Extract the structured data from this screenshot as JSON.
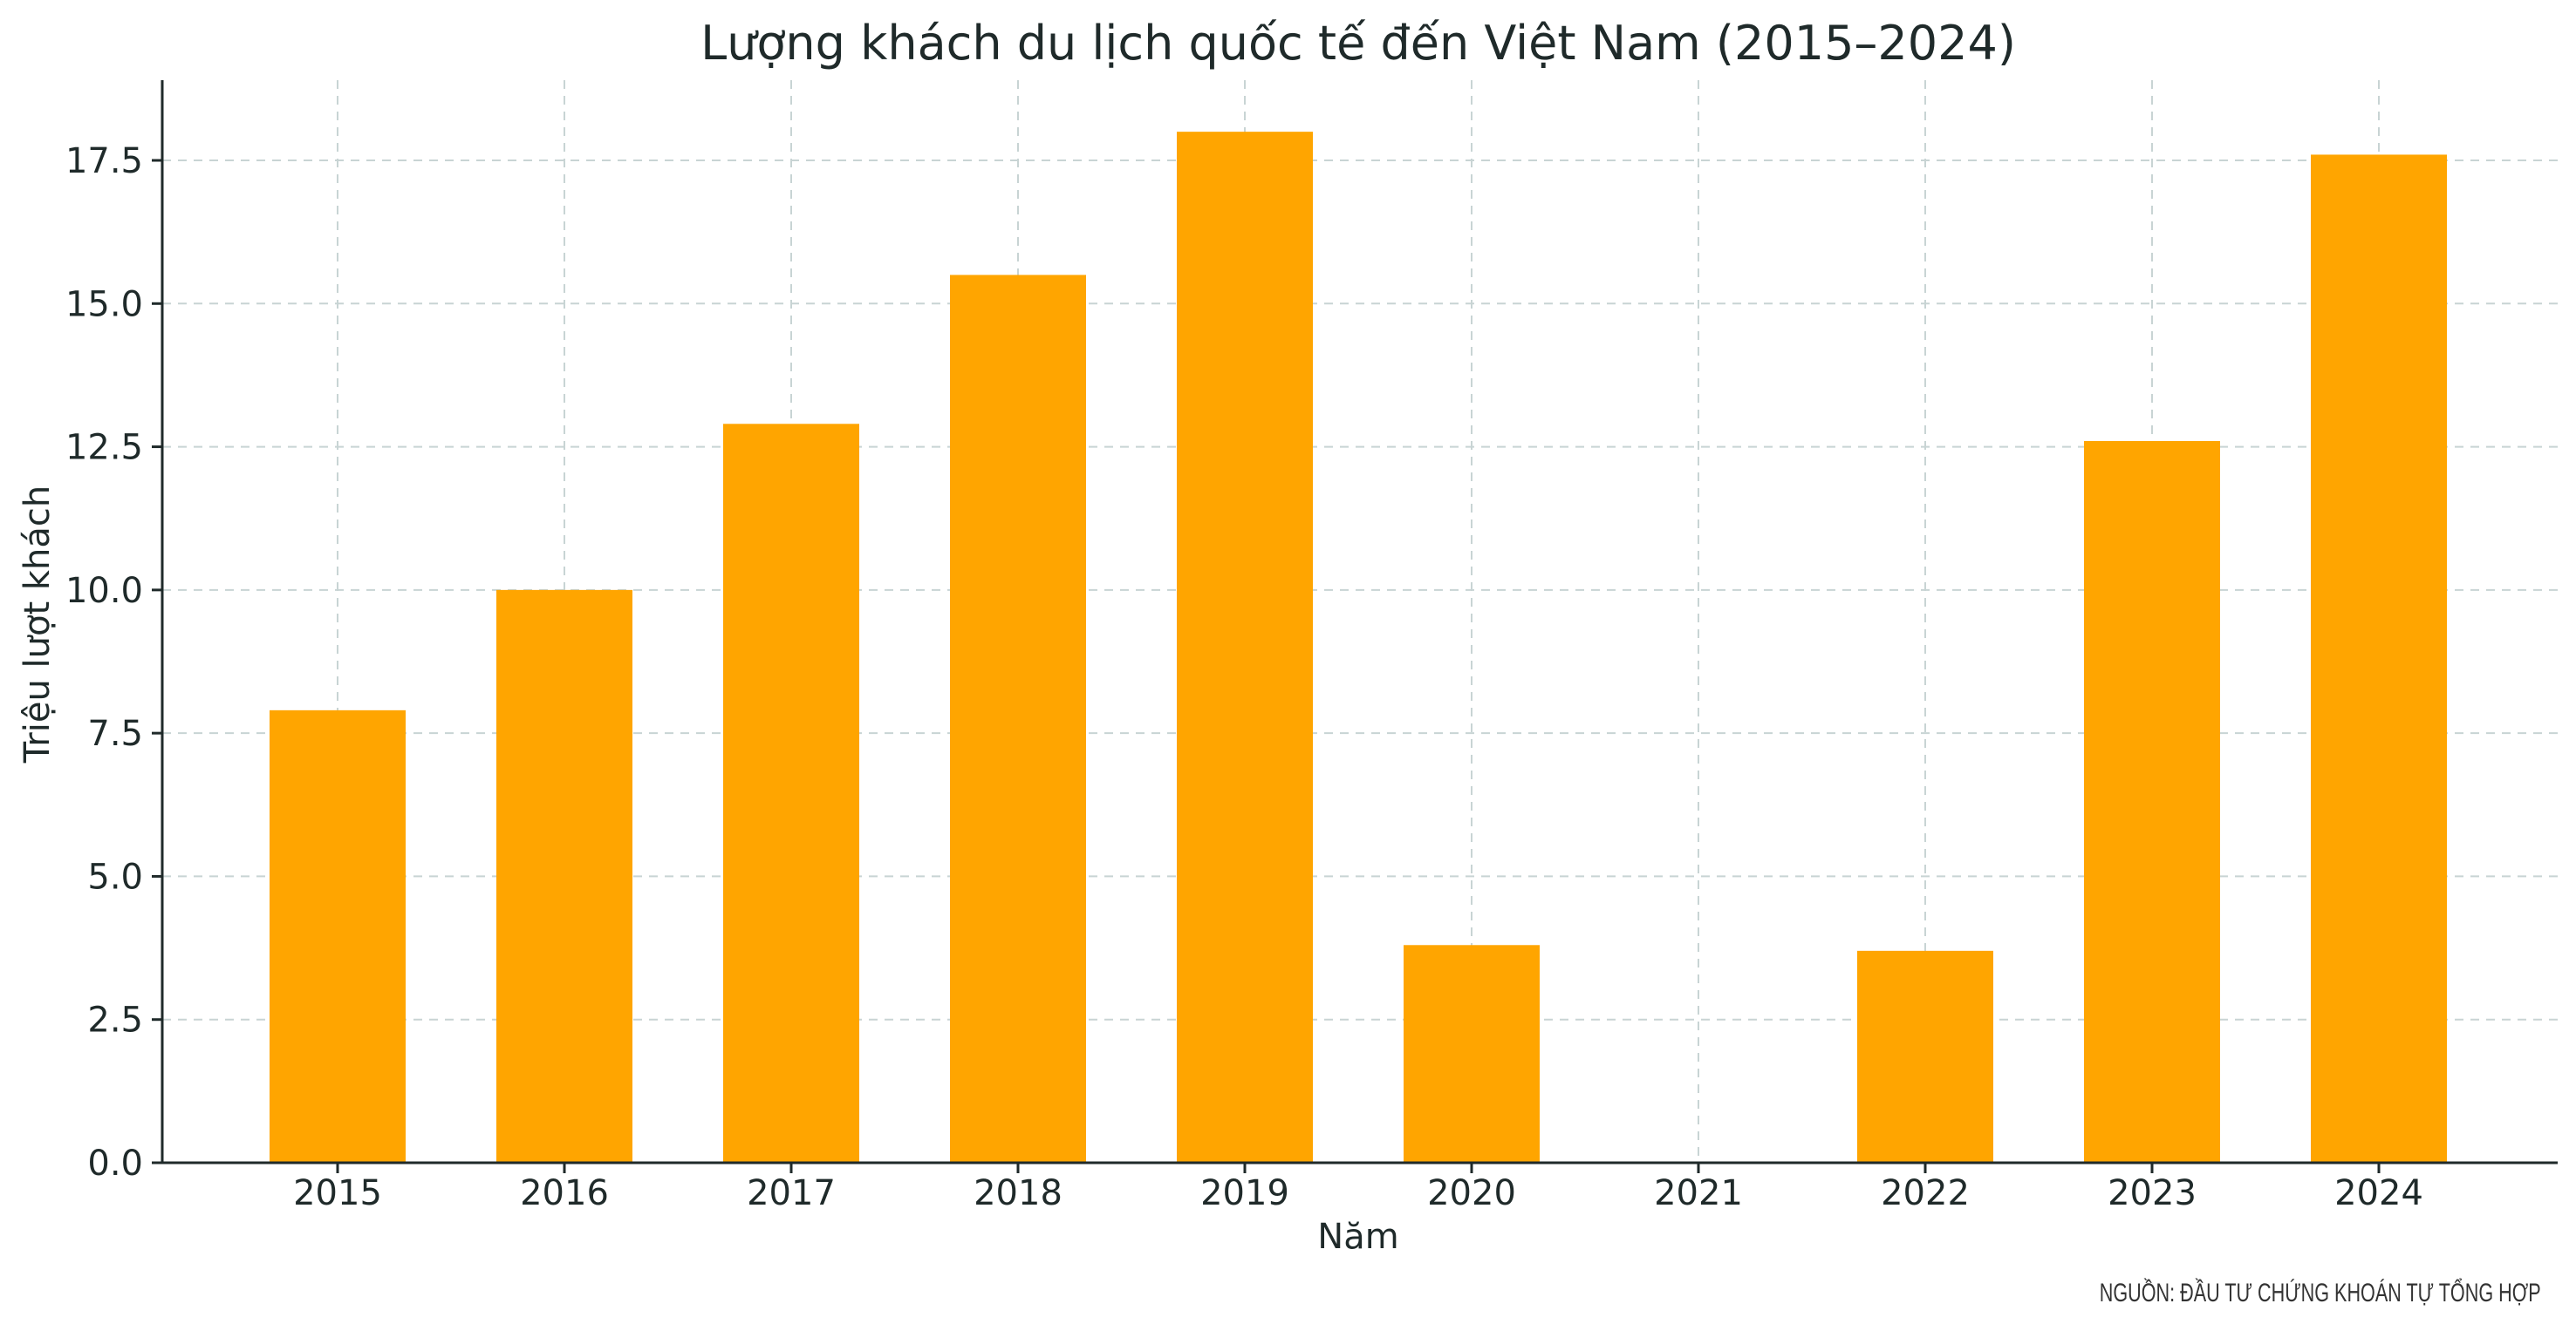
{
  "colors": {
    "bar": "#FFA500",
    "grid": "#c8d4d4",
    "axis": "#1f2a2a"
  },
  "source_note": "NGUỒN: ĐẦU TƯ CHỨNG KHOÁN TỰ TỔNG HỢP",
  "chart_data": {
    "type": "bar",
    "title": "Lượng khách du lịch quốc tế đến Việt Nam (2015–2024)",
    "xlabel": "Năm",
    "ylabel": "Triệu lượt khách",
    "categories": [
      "2015",
      "2016",
      "2017",
      "2018",
      "2019",
      "2020",
      "2021",
      "2022",
      "2023",
      "2024"
    ],
    "values": [
      7.9,
      10.0,
      12.9,
      15.5,
      18.0,
      3.8,
      0.0,
      3.7,
      12.6,
      17.6
    ],
    "ylim": [
      0,
      18.9
    ],
    "yticks": [
      0.0,
      2.5,
      5.0,
      7.5,
      10.0,
      12.5,
      15.0,
      17.5
    ],
    "ytick_labels": [
      "0.0",
      "2.5",
      "5.0",
      "7.5",
      "10.0",
      "12.5",
      "15.0",
      "17.5"
    ],
    "grid": true,
    "legend": "none"
  }
}
